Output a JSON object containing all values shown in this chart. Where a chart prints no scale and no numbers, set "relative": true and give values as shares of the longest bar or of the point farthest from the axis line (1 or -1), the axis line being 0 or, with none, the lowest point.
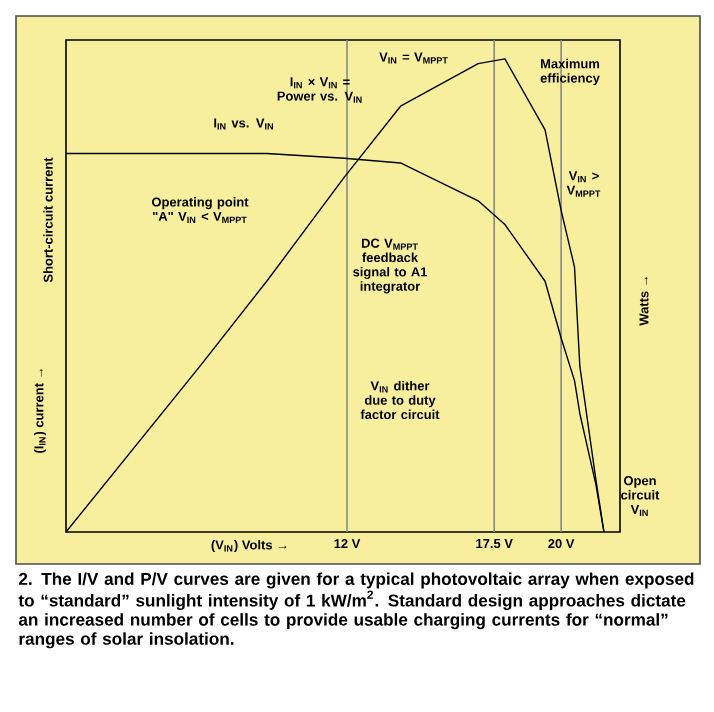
{
  "chart_data": {
    "type": "line",
    "relative": true,
    "xlabel": "(V$_{IN}$) Volts →",
    "ylabel": "(I$_{IN}$) current →",
    "y2label": "Watts →",
    "xlim": [
      1.5,
      22.2
    ],
    "xticks": [
      {
        "value": 12,
        "label": "12 V"
      },
      {
        "value": 17.5,
        "label": "17.5 V"
      },
      {
        "value": 20,
        "label": "20 V"
      }
    ],
    "x": [
      1.5,
      6.5,
      9.0,
      11.9,
      14.0,
      16.9,
      17.9,
      19.4,
      20.0,
      20.5,
      20.7,
      21.3,
      21.6
    ],
    "series": [
      {
        "color": "#000000",
        "values": [
          0.8,
          0.8,
          0.8,
          0.79,
          0.78,
          0.7,
          0.65,
          0.53,
          0.41,
          0.32,
          0.25,
          0.1,
          0
        ]
      },
      {
        "color": "#000000",
        "values": [
          0,
          0.35,
          0.53,
          0.75,
          0.9,
          0.99,
          1.0,
          0.85,
          0.68,
          0.56,
          0.35,
          0.11,
          0
        ]
      }
    ],
    "ref_lines": [
      {
        "axis": "x",
        "value": 12,
        "color": "#888888"
      },
      {
        "axis": "x",
        "value": 17.5,
        "color": "#888888"
      },
      {
        "axis": "x",
        "value": 20,
        "color": "#888888"
      }
    ],
    "annotations": [
      "V$_{IN}$ = V$_{MPPT}$",
      "Maximum efficiency",
      "I$_{IN}$ × V$_{IN}$ = Power vs. V$_{IN}$",
      "I$_{IN}$ vs. V$_{IN}$",
      "V$_{IN}$ > V$_{MPPT}$",
      "Operating point \"A\" V$_{IN}$ < V$_{MPPT}$",
      "DC V$_{MPPT}$ feedback signal to A1 integrator",
      "V$_{IN}$ dither due to duty factor circuit",
      "Short-circuit current",
      "Open circuit V$_{IN}$",
      "2. The I/V and P/V curves are given for a typical photovoltaic array when exposed to “standard” sunlight intensity of 1 kW/m$^{2}$. Standard design approaches dictate an increased number of cells to provide usable charging currents for “normal” ranges of solar insolation."
    ]
  }
}
